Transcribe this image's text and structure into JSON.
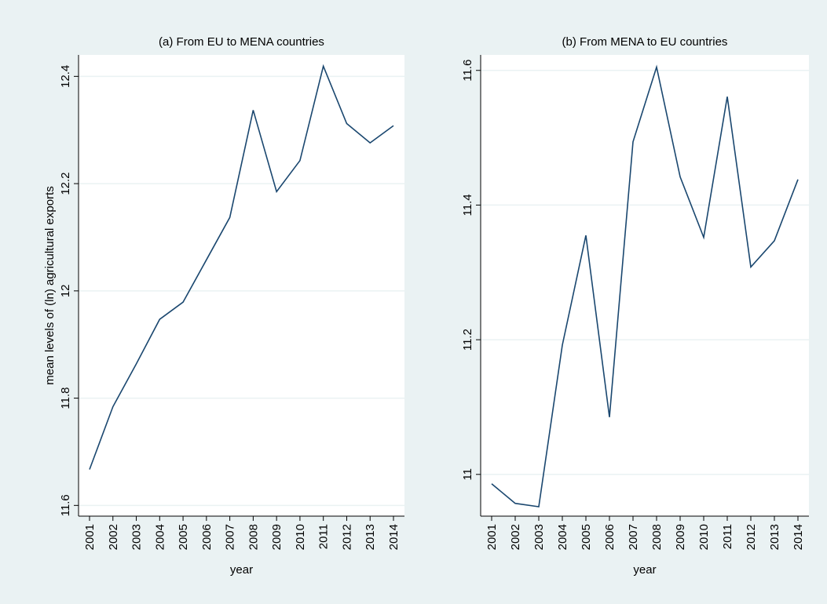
{
  "chart_data": [
    {
      "type": "line",
      "title": "(a) From EU to MENA countries",
      "y_label": "mean levels of (ln) agricultural exports",
      "x_label": "year",
      "categories": [
        "2001",
        "2002",
        "2003",
        "2004",
        "2005",
        "2006",
        "2007",
        "2008",
        "2009",
        "2010",
        "2011",
        "2012",
        "2013",
        "2014"
      ],
      "values": [
        11.667,
        11.784,
        11.864,
        11.947,
        11.979,
        12.058,
        12.137,
        12.337,
        12.185,
        12.243,
        12.419,
        12.312,
        12.276,
        12.308
      ],
      "color": "#1a476f",
      "ylim": [
        11.58,
        12.44
      ],
      "yticks": [
        11.6,
        11.8,
        12,
        12.2,
        12.4
      ],
      "grid": true
    },
    {
      "type": "line",
      "title": "(b) From MENA to EU countries",
      "x_label": "year",
      "categories": [
        "2001",
        "2002",
        "2003",
        "2004",
        "2005",
        "2006",
        "2007",
        "2008",
        "2009",
        "2010",
        "2011",
        "2012",
        "2013",
        "2014"
      ],
      "values": [
        10.986,
        10.957,
        10.952,
        11.192,
        11.355,
        11.085,
        11.494,
        11.605,
        11.442,
        11.352,
        11.561,
        11.308,
        11.347,
        11.438
      ],
      "color": "#1a476f",
      "ylim": [
        10.938,
        11.623
      ],
      "yticks": [
        11,
        11.2,
        11.4,
        11.6
      ],
      "grid": true
    }
  ]
}
